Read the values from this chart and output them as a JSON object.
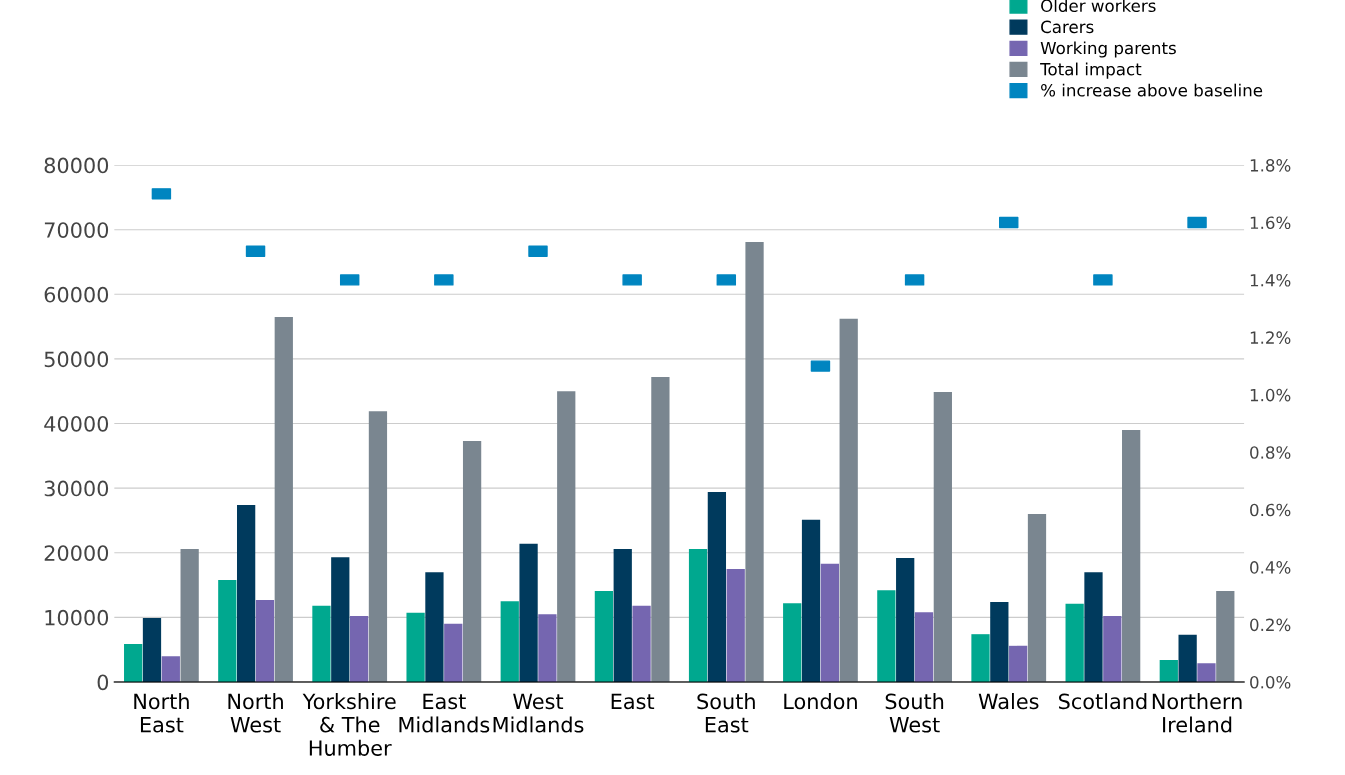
{
  "chart_data": {
    "type": "bar",
    "categories": [
      "North\nEast",
      "North\nWest",
      "Yorkshire\n& The\nHumber",
      "East\nMidlands",
      "West\nMidlands",
      "East",
      "South\nEast",
      "London",
      "South\nWest",
      "Wales",
      "Scotland",
      "Northern\nIreland"
    ],
    "series": [
      {
        "name": "Older workers",
        "color": "#00a88f",
        "values": [
          5900,
          15800,
          11800,
          10700,
          12500,
          14100,
          20600,
          12200,
          14200,
          7400,
          12100,
          3400
        ]
      },
      {
        "name": "Carers",
        "color": "#003a5d",
        "values": [
          9900,
          27400,
          19300,
          17000,
          21400,
          20600,
          29400,
          25100,
          19200,
          12400,
          17000,
          7300
        ]
      },
      {
        "name": "Working parents",
        "color": "#7566b0",
        "values": [
          4000,
          12700,
          10200,
          9000,
          10500,
          11800,
          17500,
          18300,
          10800,
          5600,
          10200,
          2900
        ]
      },
      {
        "name": "Total impact",
        "color": "#7a8690",
        "values": [
          20600,
          56500,
          41900,
          37300,
          45000,
          47200,
          68100,
          56200,
          44900,
          26000,
          39000,
          14100
        ]
      },
      {
        "name": "% increase above baseline",
        "color": "#0085c0",
        "type": "scatter",
        "axis": "y2",
        "marker": "square",
        "values": [
          1.7,
          1.5,
          1.4,
          1.4,
          1.5,
          1.4,
          1.4,
          1.1,
          1.4,
          1.6,
          1.4,
          1.6
        ]
      }
    ],
    "ylim": [
      0,
      80000
    ],
    "yticks": [
      0,
      10000,
      20000,
      30000,
      40000,
      50000,
      60000,
      70000,
      80000
    ],
    "y2lim": [
      0,
      1.8
    ],
    "y2ticks": [
      {
        "value": 0,
        "label": "0.0%"
      },
      {
        "value": 0.2,
        "label": "0.2%"
      },
      {
        "value": 0.4,
        "label": "0.4%"
      },
      {
        "value": 0.6,
        "label": "0.6%"
      },
      {
        "value": 0.8,
        "label": "0.8%"
      },
      {
        "value": 1.0,
        "label": "1.0%"
      },
      {
        "value": 1.2,
        "label": "1.2%"
      },
      {
        "value": 1.4,
        "label": "1.4%"
      },
      {
        "value": 1.6,
        "label": "1.6%"
      },
      {
        "value": 1.8,
        "label": "1.8%"
      }
    ],
    "grid": "y",
    "legend": "top right"
  }
}
